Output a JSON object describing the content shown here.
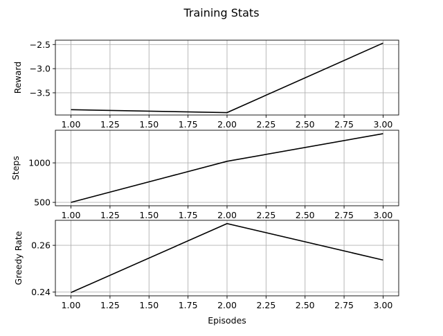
{
  "figure": {
    "title": "Training Stats"
  },
  "chart_data": [
    {
      "type": "line",
      "xlabel": "",
      "ylabel": "Reward",
      "x": [
        1,
        2,
        3
      ],
      "series": [
        {
          "values": [
            -3.85,
            -3.91,
            -2.47
          ]
        }
      ],
      "xlim": [
        0.9,
        3.1
      ],
      "ylim": [
        -3.96,
        -2.41
      ],
      "xticks": [
        1.0,
        1.25,
        1.5,
        1.75,
        2.0,
        2.25,
        2.5,
        2.75,
        3.0
      ],
      "xtick_labels": [
        "1.00",
        "1.25",
        "1.50",
        "1.75",
        "2.00",
        "2.25",
        "2.50",
        "2.75",
        "3.00"
      ],
      "yticks": [
        -3.5,
        -3.0,
        -2.5
      ],
      "ytick_labels": [
        "−3.5",
        "−3.0",
        "−2.5"
      ],
      "grid": true,
      "color": "#000000"
    },
    {
      "type": "line",
      "xlabel": "",
      "ylabel": "Steps",
      "x": [
        1,
        2,
        3
      ],
      "series": [
        {
          "values": [
            500,
            1020,
            1370
          ]
        }
      ],
      "xlim": [
        0.9,
        3.1
      ],
      "ylim": [
        457,
        1413
      ],
      "xticks": [
        1.0,
        1.25,
        1.5,
        1.75,
        2.0,
        2.25,
        2.5,
        2.75,
        3.0
      ],
      "xtick_labels": [
        "1.00",
        "1.25",
        "1.50",
        "1.75",
        "2.00",
        "2.25",
        "2.50",
        "2.75",
        "3.00"
      ],
      "yticks": [
        500,
        1000
      ],
      "ytick_labels": [
        "500",
        "1000"
      ],
      "grid": true,
      "color": "#000000"
    },
    {
      "type": "line",
      "xlabel": "Episodes",
      "ylabel": "Greedy Rate",
      "x": [
        1,
        2,
        3
      ],
      "series": [
        {
          "values": [
            0.2398,
            0.2693,
            0.2537
          ]
        }
      ],
      "xlim": [
        0.9,
        3.1
      ],
      "ylim": [
        0.2384,
        0.2707
      ],
      "xticks": [
        1.0,
        1.25,
        1.5,
        1.75,
        2.0,
        2.25,
        2.5,
        2.75,
        3.0
      ],
      "xtick_labels": [
        "1.00",
        "1.25",
        "1.50",
        "1.75",
        "2.00",
        "2.25",
        "2.50",
        "2.75",
        "3.00"
      ],
      "yticks": [
        0.24,
        0.26
      ],
      "ytick_labels": [
        "0.24",
        "0.26"
      ],
      "grid": true,
      "color": "#000000"
    }
  ]
}
